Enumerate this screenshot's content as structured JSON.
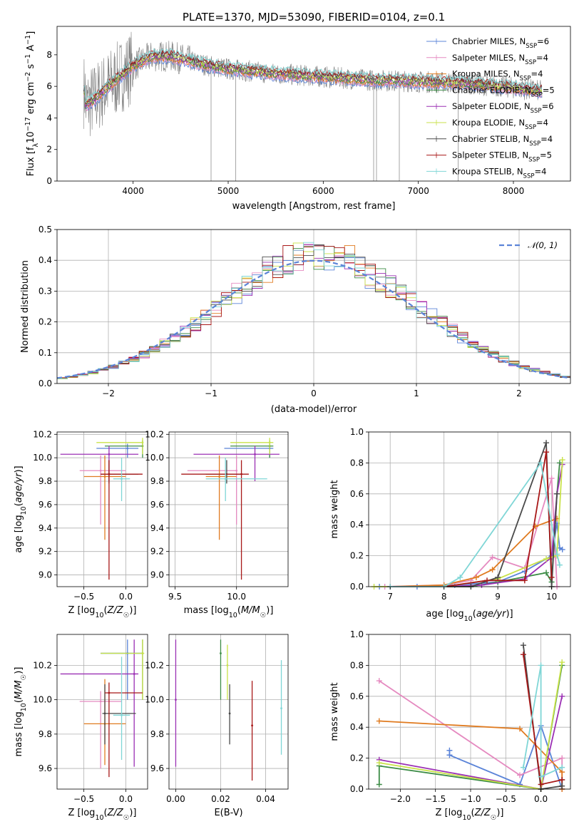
{
  "title": "PLATE=1370, MJD=53090, FIBERID=0104, z=0.1",
  "colors": {
    "chabrier_miles": "#5b84d8",
    "salpeter_miles": "#e58ac0",
    "kroupa_miles": "#e07b20",
    "chabrier_elodie": "#3c8c46",
    "salpeter_elodie": "#9b30b4",
    "kroupa_elodie": "#c9e24a",
    "chabrier_stelib": "#4a4a4a",
    "salpeter_stelib": "#a81818",
    "kroupa_stelib": "#7fd6d6",
    "spectrum": "#7f7f7f"
  },
  "chart_data": [
    {
      "type": "line",
      "xlabel": "wavelength [Angstrom, rest frame]",
      "ylabel": "Flux [f_λ 10^-17 erg cm^-2 s^-1 A^-1]",
      "xlim": [
        3200,
        8600
      ],
      "ylim": [
        0,
        9.8
      ],
      "xticks": [
        "4000",
        "5000",
        "6000",
        "7000",
        "8000"
      ],
      "yticks": [
        "0",
        "2",
        "4",
        "6",
        "8"
      ],
      "legend_position": "top-right",
      "legend": [
        {
          "key": "chabrier_miles",
          "base": "Chabrier MILES, N",
          "sub": "SSP",
          "suffix": "=6"
        },
        {
          "key": "salpeter_miles",
          "base": "Salpeter MILES, N",
          "sub": "SSP",
          "suffix": "=4"
        },
        {
          "key": "kroupa_miles",
          "base": "Kroupa MILES, N",
          "sub": "SSP",
          "suffix": "=4"
        },
        {
          "key": "chabrier_elodie",
          "base": "Chabrier ELODIE, N",
          "sub": "SSP",
          "suffix": "=5"
        },
        {
          "key": "salpeter_elodie",
          "base": "Salpeter ELODIE, N",
          "sub": "SSP",
          "suffix": "=6"
        },
        {
          "key": "kroupa_elodie",
          "base": "Kroupa ELODIE, N",
          "sub": "SSP",
          "suffix": "=4"
        },
        {
          "key": "chabrier_stelib",
          "base": "Chabrier STELIB, N",
          "sub": "SSP",
          "suffix": "=4"
        },
        {
          "key": "salpeter_stelib",
          "base": "Salpeter STELIB, N",
          "sub": "SSP",
          "suffix": "=5"
        },
        {
          "key": "kroupa_stelib",
          "base": "Kroupa STELIB, N",
          "sub": "SSP",
          "suffix": "=4"
        }
      ],
      "spectrum_envelope": {
        "wavelength": [
          3500,
          3600,
          3700,
          3800,
          3900,
          4000,
          4100,
          4200,
          4400,
          4600,
          4800,
          5000,
          5500,
          6000,
          6500,
          7000,
          7500,
          8000,
          8300
        ],
        "flux": [
          4.8,
          5.2,
          5.8,
          6.3,
          6.8,
          7.3,
          7.6,
          7.9,
          7.9,
          7.6,
          7.3,
          7.1,
          6.8,
          6.6,
          6.4,
          6.3,
          6.2,
          5.9,
          5.7
        ]
      }
    },
    {
      "type": "step",
      "xlabel": "(data-model)/error",
      "ylabel": "Normed distribution",
      "xlim": [
        -2.5,
        2.5
      ],
      "ylim": [
        0,
        0.5
      ],
      "xticks": [
        "−2",
        "−1",
        "0",
        "1",
        "2"
      ],
      "yticks": [
        "0.0",
        "0.1",
        "0.2",
        "0.3",
        "0.4",
        "0.5"
      ],
      "legend_position": "top-right",
      "normal_curve_label": "𝒩(0, 1)",
      "bin_width": 0.1
    },
    {
      "type": "errorbar",
      "xlabel": "Z [log10(Z/Z☉)]",
      "ylabel": "age [log10(age/yr)]",
      "xlim": [
        -0.82,
        0.26
      ],
      "ylim": [
        8.9,
        10.22
      ],
      "xticks": [
        "−0.5",
        "0.0"
      ],
      "yticks": [
        "9.0",
        "9.2",
        "9.4",
        "9.6",
        "9.8",
        "10.0",
        "10.2"
      ],
      "points": [
        {
          "key": "chabrier_miles",
          "x": 0.02,
          "xlo": -0.35,
          "xhi": 0.15,
          "y": 10.08,
          "ylo": 10.0,
          "yhi": 10.12
        },
        {
          "key": "salpeter_miles",
          "x": -0.3,
          "xlo": -0.55,
          "xhi": 0.0,
          "y": 9.89,
          "ylo": 9.43,
          "yhi": 10.02
        },
        {
          "key": "kroupa_miles",
          "x": -0.25,
          "xlo": -0.5,
          "xhi": 0.0,
          "y": 9.84,
          "ylo": 9.3,
          "yhi": 10.02
        },
        {
          "key": "chabrier_elodie",
          "x": 0.2,
          "xlo": -0.25,
          "xhi": 0.2,
          "y": 10.1,
          "ylo": 10.0,
          "yhi": 10.15
        },
        {
          "key": "salpeter_elodie",
          "x": -0.2,
          "xlo": -0.78,
          "xhi": 0.15,
          "y": 10.03,
          "ylo": 9.8,
          "yhi": 10.1
        },
        {
          "key": "kroupa_elodie",
          "x": 0.2,
          "xlo": -0.35,
          "xhi": 0.2,
          "y": 10.13,
          "ylo": 10.03,
          "yhi": 10.17
        },
        {
          "key": "chabrier_stelib",
          "x": -0.2,
          "xlo": -0.3,
          "xhi": 0.15,
          "y": 9.86,
          "ylo": 9.78,
          "yhi": 9.98
        },
        {
          "key": "salpeter_stelib",
          "x": -0.2,
          "xlo": -0.3,
          "xhi": 0.2,
          "y": 9.86,
          "ylo": 8.96,
          "yhi": 9.98
        },
        {
          "key": "kroupa_stelib",
          "x": -0.05,
          "xlo": -0.15,
          "xhi": 0.05,
          "y": 9.82,
          "ylo": 9.63,
          "yhi": 10.0
        }
      ]
    },
    {
      "type": "errorbar",
      "xlabel": "mass [log10(M/M☉)]",
      "ylabel": "",
      "xlim": [
        9.45,
        10.42
      ],
      "ylim": [
        8.9,
        10.22
      ],
      "xticks": [
        "9.5",
        "10.0"
      ],
      "yticks": [
        "9.0",
        "9.2",
        "9.4",
        "9.6",
        "9.8",
        "10.0",
        "10.2"
      ],
      "points": [
        {
          "key": "chabrier_miles",
          "x": 10.27,
          "xlo": 9.9,
          "xhi": 10.3,
          "y": 10.08,
          "ylo": 10.0,
          "yhi": 10.12
        },
        {
          "key": "salpeter_miles",
          "x": 10.0,
          "xlo": 9.6,
          "xhi": 10.0,
          "y": 9.89,
          "ylo": 9.43,
          "yhi": 10.02
        },
        {
          "key": "kroupa_miles",
          "x": 9.86,
          "xlo": 9.75,
          "xhi": 10.0,
          "y": 9.84,
          "ylo": 9.3,
          "yhi": 10.02
        },
        {
          "key": "chabrier_elodie",
          "x": 10.27,
          "xlo": 9.95,
          "xhi": 10.3,
          "y": 10.1,
          "ylo": 10.0,
          "yhi": 10.15
        },
        {
          "key": "salpeter_elodie",
          "x": 10.15,
          "xlo": 9.65,
          "xhi": 10.35,
          "y": 10.03,
          "ylo": 9.8,
          "yhi": 10.1
        },
        {
          "key": "kroupa_elodie",
          "x": 10.27,
          "xlo": 9.95,
          "xhi": 10.3,
          "y": 10.13,
          "ylo": 10.03,
          "yhi": 10.17
        },
        {
          "key": "chabrier_stelib",
          "x": 9.92,
          "xlo": 9.75,
          "xhi": 10.05,
          "y": 9.86,
          "ylo": 9.78,
          "yhi": 9.98
        },
        {
          "key": "salpeter_stelib",
          "x": 10.04,
          "xlo": 9.55,
          "xhi": 10.1,
          "y": 9.86,
          "ylo": 8.96,
          "yhi": 9.98
        },
        {
          "key": "kroupa_stelib",
          "x": 9.91,
          "xlo": 9.75,
          "xhi": 10.25,
          "y": 9.82,
          "ylo": 9.63,
          "yhi": 10.0
        }
      ]
    },
    {
      "type": "line",
      "xlabel": "age [log10(age/yr)]",
      "ylabel": "mass weight",
      "xlim": [
        6.6,
        10.35
      ],
      "ylim": [
        0,
        1.0
      ],
      "xticks": [
        "7",
        "8",
        "9",
        "10"
      ],
      "yticks": [
        "0.0",
        "0.2",
        "0.4",
        "0.6",
        "0.8",
        "1.0"
      ],
      "series": [
        {
          "key": "chabrier_miles",
          "x": [
            6.8,
            7.5,
            8.2,
            9.0,
            9.5,
            10.0,
            10.1,
            10.15,
            10.2
          ],
          "y": [
            0.0,
            0.0,
            0.01,
            0.03,
            0.1,
            0.2,
            0.41,
            0.25,
            0.24
          ]
        },
        {
          "key": "salpeter_miles",
          "x": [
            6.9,
            8.0,
            8.5,
            8.9,
            9.5,
            10.0,
            10.1
          ],
          "y": [
            0.0,
            0.01,
            0.04,
            0.19,
            0.12,
            0.7,
            0.0
          ]
        },
        {
          "key": "kroupa_miles",
          "x": [
            7.0,
            8.0,
            8.6,
            8.9,
            9.7,
            10.1
          ],
          "y": [
            0.0,
            0.01,
            0.06,
            0.11,
            0.39,
            0.44
          ]
        },
        {
          "key": "chabrier_elodie",
          "x": [
            7.0,
            8.5,
            9.0,
            9.9,
            10.0,
            10.1,
            10.15
          ],
          "y": [
            0.0,
            0.0,
            0.03,
            0.09,
            0.03,
            0.6,
            0.8
          ]
        },
        {
          "key": "salpeter_elodie",
          "x": [
            7.0,
            8.0,
            8.7,
            9.5,
            10.0,
            10.1,
            10.2
          ],
          "y": [
            0.0,
            0.0,
            0.01,
            0.05,
            0.19,
            0.6,
            0.79
          ]
        },
        {
          "key": "kroupa_elodie",
          "x": [
            6.7,
            8.0,
            9.0,
            9.9,
            10.1,
            10.2
          ],
          "y": [
            0.0,
            0.0,
            0.05,
            0.18,
            0.2,
            0.82
          ]
        },
        {
          "key": "chabrier_stelib",
          "x": [
            7.0,
            8.5,
            9.0,
            9.9,
            10.0,
            10.1
          ],
          "y": [
            0.0,
            0.0,
            0.06,
            0.93,
            0.0,
            0.6
          ]
        },
        {
          "key": "salpeter_stelib",
          "x": [
            7.0,
            8.0,
            8.8,
            9.5,
            9.9,
            10.0
          ],
          "y": [
            0.0,
            0.0,
            0.04,
            0.04,
            0.87,
            0.06
          ]
        },
        {
          "key": "kroupa_stelib",
          "x": [
            7.0,
            8.0,
            8.3,
            9.8,
            10.1,
            10.15
          ],
          "y": [
            0.0,
            0.0,
            0.06,
            0.8,
            0.21,
            0.14
          ]
        }
      ]
    },
    {
      "type": "errorbar",
      "xlabel": "Z [log10(Z/Z☉)]",
      "ylabel": "mass [log10(M/M☉)]",
      "xlim": [
        -0.82,
        0.26
      ],
      "ylim": [
        9.48,
        10.38
      ],
      "xticks": [
        "−0.5",
        "0.0"
      ],
      "yticks": [
        "9.6",
        "9.8",
        "10.0",
        "10.2"
      ],
      "points": [
        {
          "key": "chabrier_miles",
          "x": 0.02,
          "xlo": -0.3,
          "xhi": 0.2,
          "y": 10.27,
          "ylo": 10.0,
          "yhi": 10.35
        },
        {
          "key": "salpeter_miles",
          "x": -0.3,
          "xlo": -0.55,
          "xhi": -0.05,
          "y": 9.99,
          "ylo": 9.6,
          "yhi": 10.05
        },
        {
          "key": "kroupa_miles",
          "x": -0.25,
          "xlo": -0.5,
          "xhi": 0.0,
          "y": 9.86,
          "ylo": 9.62,
          "yhi": 10.12
        },
        {
          "key": "chabrier_elodie",
          "x": 0.2,
          "xlo": -0.3,
          "xhi": 0.2,
          "y": 10.27,
          "ylo": 10.0,
          "yhi": 10.35
        },
        {
          "key": "salpeter_elodie",
          "x": 0.1,
          "xlo": -0.78,
          "xhi": 0.15,
          "y": 10.15,
          "ylo": 9.61,
          "yhi": 10.35
        },
        {
          "key": "kroupa_elodie",
          "x": 0.2,
          "xlo": -0.3,
          "xhi": 0.22,
          "y": 10.27,
          "ylo": 10.0,
          "yhi": 10.35
        },
        {
          "key": "chabrier_stelib",
          "x": -0.25,
          "xlo": -0.28,
          "xhi": 0.12,
          "y": 9.92,
          "ylo": 9.74,
          "yhi": 10.09
        },
        {
          "key": "salpeter_stelib",
          "x": -0.2,
          "xlo": -0.25,
          "xhi": 0.2,
          "y": 10.04,
          "ylo": 9.55,
          "yhi": 10.1
        },
        {
          "key": "kroupa_stelib",
          "x": -0.05,
          "xlo": -0.15,
          "xhi": 0.05,
          "y": 9.91,
          "ylo": 9.65,
          "yhi": 10.25
        }
      ]
    },
    {
      "type": "errorbar",
      "xlabel": "E(B-V)",
      "ylabel": "",
      "xlim": [
        -0.003,
        0.05
      ],
      "ylim": [
        9.48,
        10.38
      ],
      "xticks": [
        "0.00",
        "0.02",
        "0.04"
      ],
      "yticks": [
        "9.6",
        "9.8",
        "10.0",
        "10.2"
      ],
      "points": [
        {
          "key": "salpeter_elodie",
          "x": 0.0,
          "y": 10.0,
          "ylo": 9.61,
          "yhi": 10.35
        },
        {
          "key": "chabrier_elodie",
          "x": 0.02,
          "y": 10.27,
          "ylo": 10.0,
          "yhi": 10.35
        },
        {
          "key": "kroupa_elodie",
          "x": 0.023,
          "y": 10.2,
          "ylo": 10.0,
          "yhi": 10.32
        },
        {
          "key": "chabrier_stelib",
          "x": 0.024,
          "y": 9.92,
          "ylo": 9.74,
          "yhi": 10.09
        },
        {
          "key": "salpeter_stelib",
          "x": 0.034,
          "y": 9.85,
          "ylo": 9.53,
          "yhi": 10.11
        },
        {
          "key": "kroupa_stelib",
          "x": 0.047,
          "y": 9.95,
          "ylo": 9.68,
          "yhi": 10.23
        }
      ]
    },
    {
      "type": "line",
      "xlabel": "Z [log10(Z/Z☉)]",
      "ylabel": "mass weight",
      "xlim": [
        -2.45,
        0.42
      ],
      "ylim": [
        0,
        1.0
      ],
      "xticks": [
        "−2.0",
        "−1.5",
        "−1.0",
        "−0.5",
        "0.0"
      ],
      "yticks": [
        "0.0",
        "0.2",
        "0.4",
        "0.6",
        "0.8",
        "1.0"
      ],
      "series": [
        {
          "key": "chabrier_miles",
          "x": [
            -1.3,
            -1.3,
            -0.3,
            0.0,
            0.3
          ],
          "y": [
            0.25,
            0.22,
            0.03,
            0.41,
            0.0
          ]
        },
        {
          "key": "salpeter_miles",
          "x": [
            -2.3,
            -0.3,
            0.3,
            0.3
          ],
          "y": [
            0.7,
            0.09,
            0.2,
            0.0
          ]
        },
        {
          "key": "kroupa_miles",
          "x": [
            -2.3,
            -0.3,
            0.3,
            0.3
          ],
          "y": [
            0.44,
            0.39,
            0.11,
            0.0
          ]
        },
        {
          "key": "chabrier_elodie",
          "x": [
            -2.3,
            -2.3,
            0.0,
            0.3
          ],
          "y": [
            0.03,
            0.15,
            0.0,
            0.8
          ]
        },
        {
          "key": "salpeter_elodie",
          "x": [
            -2.3,
            0.0,
            0.3
          ],
          "y": [
            0.19,
            0.0,
            0.6
          ]
        },
        {
          "key": "kroupa_elodie",
          "x": [
            -2.3,
            0.0,
            0.3
          ],
          "y": [
            0.17,
            0.0,
            0.82
          ]
        },
        {
          "key": "chabrier_stelib",
          "x": [
            -0.25,
            0.0,
            0.3,
            0.3
          ],
          "y": [
            0.93,
            0.0,
            0.02,
            0.06
          ]
        },
        {
          "key": "salpeter_stelib",
          "x": [
            -0.25,
            0.0,
            0.3
          ],
          "y": [
            0.87,
            0.03,
            0.06
          ]
        },
        {
          "key": "kroupa_stelib",
          "x": [
            -0.25,
            0.0,
            0.0,
            0.3
          ],
          "y": [
            0.14,
            0.8,
            0.08,
            0.14
          ]
        }
      ]
    }
  ]
}
